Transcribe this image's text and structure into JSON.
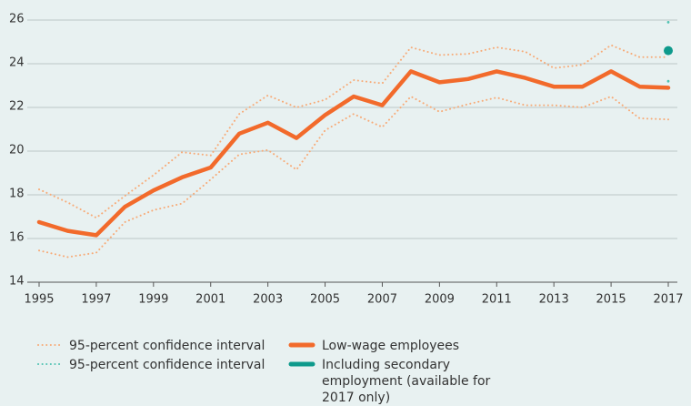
{
  "chart_data": {
    "type": "line",
    "x": [
      1995,
      1996,
      1997,
      1998,
      1999,
      2000,
      2001,
      2002,
      2003,
      2004,
      2005,
      2006,
      2007,
      2008,
      2009,
      2010,
      2011,
      2012,
      2013,
      2014,
      2015,
      2016,
      2017
    ],
    "xlim": [
      1995,
      2017
    ],
    "xticks": [
      1995,
      1997,
      1999,
      2001,
      2003,
      2005,
      2007,
      2009,
      2011,
      2013,
      2015,
      2017
    ],
    "ylim": [
      14,
      26
    ],
    "yticks": [
      14,
      16,
      18,
      20,
      22,
      24,
      26
    ],
    "grid": true,
    "series": [
      {
        "name": "95-percent confidence interval",
        "color": "#f7ab78",
        "dash": "dotted",
        "upper": [
          18.25,
          17.65,
          16.95,
          17.95,
          18.9,
          19.95,
          19.8,
          21.7,
          22.55,
          22.0,
          22.35,
          23.25,
          23.1,
          24.75,
          24.4,
          24.45,
          24.75,
          24.55,
          23.8,
          23.95,
          24.85,
          24.3,
          24.3
        ],
        "lower": [
          15.45,
          15.15,
          15.35,
          16.75,
          17.3,
          17.6,
          18.7,
          19.85,
          20.05,
          19.15,
          20.95,
          21.7,
          21.1,
          22.5,
          21.8,
          22.15,
          22.45,
          22.1,
          22.1,
          22.0,
          22.5,
          21.5,
          21.45
        ]
      },
      {
        "name": "95-percent confidence interval",
        "color": "#4fc2b2",
        "dash": "dotted",
        "upper": [
          null,
          null,
          null,
          null,
          null,
          null,
          null,
          null,
          null,
          null,
          null,
          null,
          null,
          null,
          null,
          null,
          null,
          null,
          null,
          null,
          null,
          null,
          25.9
        ],
        "lower": [
          null,
          null,
          null,
          null,
          null,
          null,
          null,
          null,
          null,
          null,
          null,
          null,
          null,
          null,
          null,
          null,
          null,
          null,
          null,
          null,
          null,
          null,
          23.2
        ]
      },
      {
        "name": "Low-wage employees",
        "color": "#f26a2b",
        "dash": "solid",
        "values": [
          16.75,
          16.35,
          16.15,
          17.45,
          18.2,
          18.8,
          19.25,
          20.8,
          21.3,
          20.6,
          21.65,
          22.5,
          22.1,
          23.65,
          23.15,
          23.3,
          23.65,
          23.35,
          22.95,
          22.95,
          23.65,
          22.95,
          22.9
        ]
      },
      {
        "name": "Including secondary employment (available for 2017 only)",
        "color": "#0e9a8c",
        "dash": "solid",
        "values": [
          null,
          null,
          null,
          null,
          null,
          null,
          null,
          null,
          null,
          null,
          null,
          null,
          null,
          null,
          null,
          null,
          null,
          null,
          null,
          null,
          null,
          null,
          24.6
        ]
      }
    ]
  }
}
